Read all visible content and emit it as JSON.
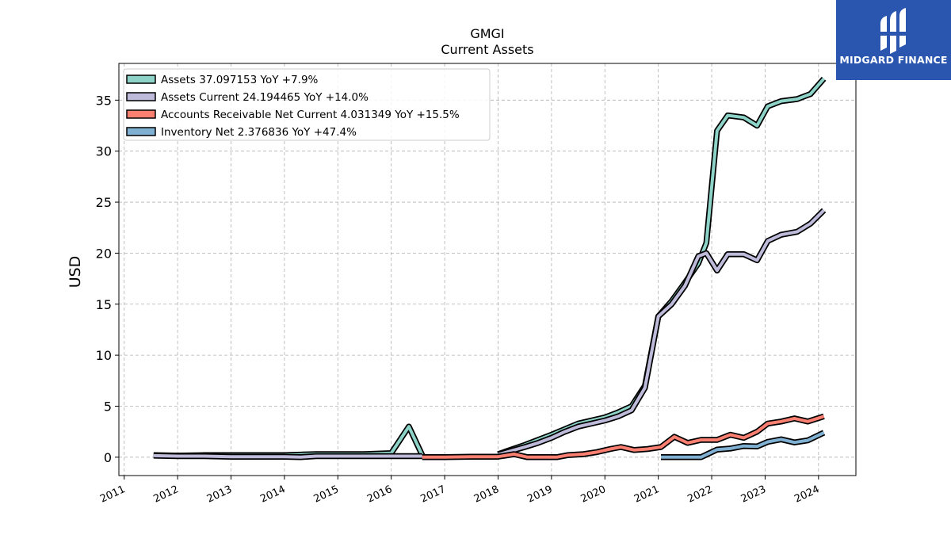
{
  "brand": {
    "name": "MIDGARD FINANCE",
    "icon": "midgard-logo-icon",
    "color": "#2a56b0"
  },
  "chart_data": {
    "type": "line",
    "title": "GMGI",
    "subtitle": "Current  Assets",
    "xlabel": "",
    "ylabel": "USD",
    "xlim": [
      2010.9,
      2024.7
    ],
    "ylim": [
      -1.8,
      38.6
    ],
    "xticks": [
      2011,
      2012,
      2013,
      2014,
      2015,
      2016,
      2017,
      2018,
      2019,
      2020,
      2021,
      2022,
      2023,
      2024
    ],
    "yticks": [
      0,
      5,
      10,
      15,
      20,
      25,
      30,
      35
    ],
    "grid": true,
    "legend_position": "top-left",
    "series": [
      {
        "name": "Assets  37.097153 YoY +7.9%",
        "color": "#8dd3c7",
        "x": [
          2011.55,
          2012.0,
          2012.5,
          2013.0,
          2013.5,
          2014.0,
          2014.3,
          2014.6,
          2015.0,
          2015.5,
          2016.0,
          2016.33,
          2016.58
        ],
        "y": [
          0.2,
          0.15,
          0.2,
          0.2,
          0.2,
          0.2,
          0.25,
          0.3,
          0.3,
          0.3,
          0.4,
          3.0,
          0.2
        ]
      },
      {
        "name": "Assets  37.097153 YoY +7.9%",
        "color": "#8dd3c7",
        "x": [
          2018.0,
          2018.5,
          2019.0,
          2019.5,
          2020.0,
          2020.25,
          2020.5,
          2020.75,
          2021.0,
          2021.25,
          2021.5,
          2021.75,
          2021.9,
          2022.1,
          2022.3,
          2022.6,
          2022.85,
          2023.05,
          2023.3,
          2023.6,
          2023.85,
          2024.1
        ],
        "y": [
          0.3,
          1.2,
          2.2,
          3.3,
          3.9,
          4.4,
          5.0,
          7.0,
          13.8,
          15.3,
          17.1,
          19.0,
          21.0,
          32.0,
          33.5,
          33.3,
          32.5,
          34.4,
          34.9,
          35.1,
          35.6,
          37.1
        ]
      },
      {
        "name": "Assets Current  24.194465 YoY +14.0%",
        "color": "#bebada",
        "x": [
          2011.55,
          2012.0,
          2012.5,
          2013.0,
          2013.5,
          2014.0,
          2014.3,
          2014.6,
          2015.0,
          2015.5,
          2016.0,
          2016.33,
          2016.58
        ],
        "y": [
          0.15,
          0.1,
          0.1,
          0.05,
          0.05,
          0.05,
          0.0,
          0.1,
          0.1,
          0.1,
          0.1,
          0.1,
          0.1
        ]
      },
      {
        "name": "Assets Current  24.194465 YoY +14.0%",
        "color": "#bebada",
        "x": [
          2018.0,
          2018.5,
          2018.75,
          2019.0,
          2019.25,
          2019.5,
          2019.75,
          2020.0,
          2020.25,
          2020.5,
          2020.75,
          2021.0,
          2021.25,
          2021.5,
          2021.75,
          2021.9,
          2022.1,
          2022.3,
          2022.6,
          2022.85,
          2023.05,
          2023.3,
          2023.6,
          2023.85,
          2024.1
        ],
        "y": [
          0.25,
          1.0,
          1.4,
          1.9,
          2.5,
          3.0,
          3.3,
          3.6,
          4.0,
          4.6,
          6.8,
          13.8,
          15.0,
          16.8,
          19.7,
          20.0,
          18.3,
          19.9,
          19.9,
          19.3,
          21.2,
          21.8,
          22.1,
          22.9,
          24.2
        ]
      },
      {
        "name": "Accounts Receivable Net Current  4.031349 YoY +15.5%",
        "color": "#fb8072",
        "x": [
          2016.58,
          2017.0,
          2017.5,
          2018.0,
          2018.3,
          2018.55,
          2019.1,
          2019.3,
          2019.6,
          2019.85,
          2020.1,
          2020.3,
          2020.55,
          2020.8,
          2021.05,
          2021.3,
          2021.55,
          2021.8,
          2022.1,
          2022.35,
          2022.6,
          2022.85,
          2023.05,
          2023.3,
          2023.55,
          2023.8,
          2024.1
        ],
        "y": [
          0.0,
          0.0,
          0.05,
          0.05,
          0.3,
          0.0,
          0.0,
          0.2,
          0.3,
          0.5,
          0.8,
          1.0,
          0.7,
          0.8,
          1.0,
          2.0,
          1.4,
          1.7,
          1.7,
          2.2,
          1.9,
          2.5,
          3.3,
          3.5,
          3.8,
          3.5,
          4.0
        ]
      },
      {
        "name": "Inventory Net  2.376836 YoY +47.4%",
        "color": "#80b1d3",
        "x": [
          2021.05,
          2021.3,
          2021.55,
          2021.8,
          2022.1,
          2022.35,
          2022.6,
          2022.85,
          2023.05,
          2023.3,
          2023.55,
          2023.8,
          2024.1
        ],
        "y": [
          0.0,
          0.0,
          0.0,
          0.0,
          0.75,
          0.85,
          1.1,
          1.05,
          1.5,
          1.75,
          1.45,
          1.65,
          2.4
        ]
      }
    ],
    "legend": [
      {
        "label": "Assets  37.097153 YoY +7.9%",
        "color": "#8dd3c7"
      },
      {
        "label": "Assets Current  24.194465 YoY +14.0%",
        "color": "#bebada"
      },
      {
        "label": "Accounts Receivable Net Current  4.031349 YoY +15.5%",
        "color": "#fb8072"
      },
      {
        "label": "Inventory Net  2.376836 YoY +47.4%",
        "color": "#80b1d3"
      }
    ]
  }
}
